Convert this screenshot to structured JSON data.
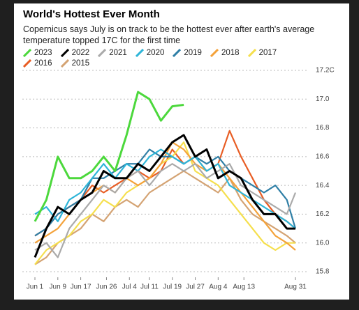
{
  "chart_data": {
    "type": "line",
    "title": "World's Hottest Ever Month",
    "subtitle": "Copernicus says July is on track to be the hottest ever after earth's average temperature topped 17C for the first time",
    "x": [
      0,
      4,
      8,
      12,
      16,
      20,
      24,
      28,
      32,
      36,
      40,
      44,
      48,
      52,
      56,
      60,
      64,
      68,
      72,
      76,
      80,
      84,
      88,
      91
    ],
    "xlim": [
      0,
      91
    ],
    "xticks": [
      {
        "value": 0,
        "label": "Jun 1"
      },
      {
        "value": 8,
        "label": "Jun 9"
      },
      {
        "value": 16,
        "label": "Jun 17"
      },
      {
        "value": 25,
        "label": "Jun 26"
      },
      {
        "value": 33,
        "label": "Jul 4"
      },
      {
        "value": 40,
        "label": "Jul 11"
      },
      {
        "value": 48,
        "label": "Jul 19"
      },
      {
        "value": 56,
        "label": "Jul 27"
      },
      {
        "value": 64,
        "label": "Aug 4"
      },
      {
        "value": 73,
        "label": "Aug 13"
      },
      {
        "value": 91,
        "label": "Aug 31"
      }
    ],
    "ylim": [
      15.8,
      17.2
    ],
    "yticks": [
      15.8,
      {
        "value": 16.0,
        "label": "16.0"
      },
      16.2,
      16.4,
      16.6,
      16.8,
      {
        "value": 17.0,
        "label": "17.0"
      },
      {
        "value": 17.2,
        "label": "17.2C"
      }
    ],
    "grid": true,
    "series": [
      {
        "name": "2023",
        "color": "#4cd83c",
        "values": [
          16.15,
          16.3,
          16.6,
          16.45,
          16.45,
          16.5,
          16.6,
          16.5,
          16.75,
          17.05,
          17.0,
          16.85,
          16.95,
          16.96,
          null,
          null,
          null,
          null,
          null,
          null,
          null,
          null,
          null,
          null
        ]
      },
      {
        "name": "2022",
        "color": "#000000",
        "values": [
          15.9,
          16.1,
          16.25,
          16.2,
          16.3,
          16.35,
          16.5,
          16.45,
          16.45,
          16.55,
          16.5,
          16.6,
          16.7,
          16.75,
          16.6,
          16.65,
          16.45,
          16.5,
          16.45,
          16.3,
          16.2,
          16.2,
          16.1,
          16.1
        ]
      },
      {
        "name": "2021",
        "color": "#aaaaaa",
        "values": [
          15.95,
          16.0,
          15.9,
          16.1,
          16.2,
          16.3,
          16.4,
          16.35,
          16.45,
          16.5,
          16.4,
          16.5,
          16.55,
          16.5,
          16.55,
          16.45,
          16.5,
          16.55,
          16.4,
          16.35,
          16.3,
          16.25,
          16.2,
          16.35
        ]
      },
      {
        "name": "2020",
        "color": "#2eb5d8",
        "values": [
          16.2,
          16.25,
          16.15,
          16.3,
          16.35,
          16.45,
          16.55,
          16.45,
          16.55,
          16.5,
          16.6,
          16.65,
          16.6,
          16.55,
          16.6,
          16.5,
          16.55,
          16.4,
          16.35,
          16.3,
          16.25,
          16.2,
          16.15,
          16.1
        ]
      },
      {
        "name": "2019",
        "color": "#2f7fa6",
        "values": [
          16.05,
          16.1,
          16.2,
          16.25,
          16.3,
          16.45,
          16.45,
          16.5,
          16.55,
          16.55,
          16.65,
          16.6,
          16.6,
          16.55,
          16.6,
          16.55,
          16.6,
          16.5,
          16.45,
          16.4,
          16.35,
          16.4,
          16.3,
          16.1
        ]
      },
      {
        "name": "2018",
        "color": "#f4a23a",
        "values": [
          16.0,
          16.05,
          16.1,
          16.2,
          16.3,
          16.35,
          16.4,
          16.35,
          16.45,
          16.4,
          16.45,
          16.55,
          16.7,
          16.65,
          16.55,
          16.5,
          16.55,
          16.45,
          16.35,
          16.25,
          16.15,
          16.05,
          16.0,
          15.95
        ]
      },
      {
        "name": "2017",
        "color": "#f5df4d",
        "values": [
          15.85,
          15.95,
          16.0,
          16.05,
          16.15,
          16.2,
          16.3,
          16.25,
          16.35,
          16.4,
          16.45,
          16.55,
          16.6,
          16.7,
          16.5,
          16.45,
          16.4,
          16.3,
          16.2,
          16.1,
          16.0,
          15.95,
          16.0,
          16.0
        ]
      },
      {
        "name": "2016",
        "color": "#e85d24",
        "values": [
          16.05,
          16.1,
          16.2,
          16.25,
          16.3,
          16.4,
          16.35,
          16.4,
          16.45,
          16.5,
          16.45,
          16.5,
          16.65,
          16.55,
          16.6,
          16.5,
          16.55,
          16.78,
          16.6,
          16.45,
          16.3,
          16.2,
          16.15,
          16.1
        ]
      },
      {
        "name": "2015",
        "color": "#d4a373",
        "values": [
          15.85,
          15.9,
          16.0,
          16.05,
          16.1,
          16.2,
          16.15,
          16.25,
          16.3,
          16.25,
          16.35,
          16.4,
          16.45,
          16.5,
          16.45,
          16.4,
          16.35,
          16.45,
          16.3,
          16.2,
          16.15,
          16.1,
          16.05,
          16.0
        ]
      }
    ]
  }
}
